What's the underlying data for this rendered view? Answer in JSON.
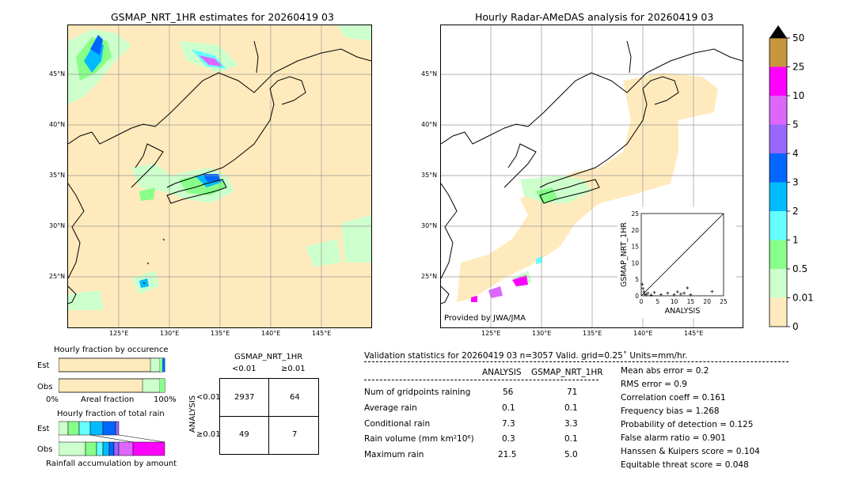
{
  "left_map": {
    "title": "GSMAP_NRT_1HR estimates for 20260419 03",
    "lat_labels": [
      "45°N",
      "40°N",
      "35°N",
      "30°N",
      "25°N"
    ],
    "lon_labels": [
      "125°E",
      "130°E",
      "135°E",
      "140°E",
      "145°E"
    ]
  },
  "right_map": {
    "title": "Hourly Radar-AMeDAS analysis for 20260419 03",
    "lat_labels": [
      "45°N",
      "40°N",
      "35°N",
      "30°N",
      "25°N"
    ],
    "lon_labels": [
      "125°E",
      "130°E",
      "135°E",
      "140°E",
      "145°E"
    ],
    "credit": "Provided by JWA/JMA"
  },
  "colorbar": {
    "ticks": [
      "50",
      "25",
      "10",
      "5",
      "4",
      "3",
      "2",
      "1",
      "0.5",
      "0.01",
      "0"
    ],
    "colors": [
      "#c8963c",
      "#ff00ff",
      "#dd66ff",
      "#9966ff",
      "#0066ff",
      "#00bbff",
      "#66ffff",
      "#88ff88",
      "#ccffcc",
      "#ffeabd"
    ]
  },
  "inset_scatter": {
    "ylabel": "GSMAP_NRT_1HR",
    "xlabel": "ANALYSIS",
    "ticks": [
      "0",
      "5",
      "10",
      "15",
      "20",
      "25"
    ]
  },
  "fraction_occurrence": {
    "title": "Hourly fraction by occurence",
    "row_est": "Est",
    "row_obs": "Obs",
    "axis_left": "0%",
    "axis_mid": "Areal fraction",
    "axis_right": "100%"
  },
  "fraction_total": {
    "title": "Hourly fraction of total rain",
    "row_est": "Est",
    "row_obs": "Obs",
    "axis_label": "Rainfall accumulation by amount"
  },
  "contingency": {
    "title": "GSMAP_NRT_1HR",
    "col_lt": "<0.01",
    "col_ge": "≥0.01",
    "side_label": "ANALYSIS",
    "row_lt": "<0.01",
    "row_ge": "≥0.01",
    "cells": [
      "2937",
      "64",
      "49",
      "7"
    ]
  },
  "validation": {
    "header": "Validation statistics for 20260419 03  n=3057 Valid. grid=0.25˚ Units=mm/hr.",
    "col_analysis": "ANALYSIS",
    "col_gsmap": "GSMAP_NRT_1HR",
    "rows": [
      {
        "label": "Num of gridpoints raining",
        "analysis": "56",
        "gsmap": "71"
      },
      {
        "label": "Average rain",
        "analysis": "0.1",
        "gsmap": "0.1"
      },
      {
        "label": "Conditional rain",
        "analysis": "7.3",
        "gsmap": "3.3"
      },
      {
        "label": "Rain volume (mm km²10⁶)",
        "analysis": "0.3",
        "gsmap": "0.1"
      },
      {
        "label": "Maximum rain",
        "analysis": "21.5",
        "gsmap": "5.0"
      }
    ],
    "scores": [
      "Mean abs error =    0.2",
      "RMS error =    0.9",
      "Correlation coeff =  0.161",
      "Frequency bias =  1.268",
      "Probability of detection =  0.125",
      "False alarm ratio =  0.901",
      "Hanssen & Kuipers score =  0.104",
      "Equitable threat score =  0.048"
    ]
  },
  "chart_data": {
    "type": "scatter",
    "xlabel": "ANALYSIS",
    "ylabel": "GSMAP_NRT_1HR",
    "xlim": [
      0,
      25
    ],
    "ylim": [
      0,
      25
    ],
    "points": [
      [
        0.3,
        3.5
      ],
      [
        0.5,
        2.2
      ],
      [
        0.8,
        1.2
      ],
      [
        1.0,
        0.5
      ],
      [
        1.5,
        0.3
      ],
      [
        2,
        0.8
      ],
      [
        3,
        0.2
      ],
      [
        4,
        1.0
      ],
      [
        6,
        0.4
      ],
      [
        8,
        0.8
      ],
      [
        10,
        0.3
      ],
      [
        11,
        1.2
      ],
      [
        12,
        0.5
      ],
      [
        13,
        0.8
      ],
      [
        14,
        2.4
      ],
      [
        15,
        0.3
      ],
      [
        21.5,
        1.3
      ]
    ]
  }
}
